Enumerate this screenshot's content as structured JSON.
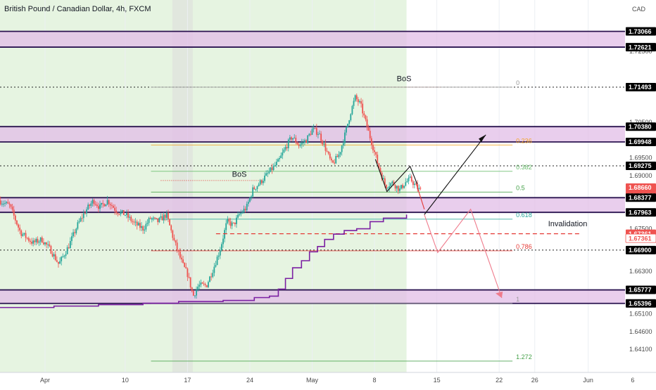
{
  "chart_data": {
    "type": "candlestick",
    "title": "British Pound / Canadian Dollar, 4h, FXCM",
    "currency": "CAD",
    "ylim": [
      1.6345,
      1.7395
    ],
    "x_axis": {
      "ticks": [
        {
          "label": "Apr",
          "day": 0
        },
        {
          "label": "10",
          "day": 9
        },
        {
          "label": "17",
          "day": 16
        },
        {
          "label": "24",
          "day": 23
        },
        {
          "label": "May",
          "day": 30
        },
        {
          "label": "8",
          "day": 37
        },
        {
          "label": "15",
          "day": 44
        },
        {
          "label": "22",
          "day": 51
        },
        {
          "label": "26",
          "day": 55
        },
        {
          "label": "Jun",
          "day": 61
        },
        {
          "label": "6",
          "day": 66
        }
      ]
    },
    "y_axis_ticks": [
      "1.72500",
      "1.70500",
      "1.69500",
      "1.69000",
      "1.67500",
      "1.66300",
      "1.65100",
      "1.64600",
      "1.64100"
    ],
    "price_tags": [
      {
        "label": "1.73066",
        "value": 1.73066,
        "style": "level"
      },
      {
        "label": "1.72621",
        "value": 1.72621,
        "style": "level"
      },
      {
        "label": "1.71493",
        "value": 1.71493,
        "style": "level"
      },
      {
        "label": "1.70380",
        "value": 1.7038,
        "style": "level"
      },
      {
        "label": "1.69948",
        "value": 1.69948,
        "style": "level"
      },
      {
        "label": "1.69275",
        "value": 1.69275,
        "style": "level"
      },
      {
        "label": "1.68660",
        "value": 1.6866,
        "style": "current"
      },
      {
        "label": "01:13:54",
        "value": 1.6844,
        "style": "countdown"
      },
      {
        "label": "1.68377",
        "value": 1.68377,
        "style": "level"
      },
      {
        "label": "1.67963",
        "value": 1.67963,
        "style": "level"
      },
      {
        "label": "1.67361",
        "value": 1.67361,
        "style": "red"
      },
      {
        "label": "1.67361",
        "value": 1.67231,
        "style": "red-outline"
      },
      {
        "label": "1.66900",
        "value": 1.669,
        "style": "level"
      },
      {
        "label": "1.65777",
        "value": 1.65777,
        "style": "level"
      },
      {
        "label": "1.65396",
        "value": 1.65396,
        "style": "level"
      }
    ],
    "zones": [
      {
        "name": "supply-zone-top",
        "y_top": 1.73066,
        "y_bottom": 1.72621
      },
      {
        "name": "supply-zone-mid",
        "y_top": 1.7038,
        "y_bottom": 1.69948
      },
      {
        "name": "demand-zone-mid",
        "y_top": 1.68377,
        "y_bottom": 1.67963
      },
      {
        "name": "demand-zone-low",
        "y_top": 1.65777,
        "y_bottom": 1.65396
      }
    ],
    "fibonacci": [
      {
        "label": "0",
        "value": 1.71493
      },
      {
        "label": "0.236",
        "value": 1.69862
      },
      {
        "label": "0.382",
        "value": 1.6912
      },
      {
        "label": "0.5",
        "value": 1.68534
      },
      {
        "label": "0.618",
        "value": 1.67772
      },
      {
        "label": "0.786",
        "value": 1.6688
      },
      {
        "label": "1",
        "value": 1.65396
      },
      {
        "label": "1.272",
        "value": 1.6377
      }
    ],
    "annotations": [
      {
        "text": "BoS",
        "x_day": 39.5,
        "y": 1.7166
      },
      {
        "text": "BoS",
        "x_day": 21.0,
        "y": 1.6897
      },
      {
        "text": "Invalidation",
        "x_day": 56.5,
        "y": 1.6757
      }
    ],
    "moving_average_color": "#7b1fa2",
    "colors": {
      "up": "#26a69a",
      "down": "#ef5350",
      "zone_fill": "#e1bee7",
      "zone_border": "#2b1450",
      "highlight_green": "#e6f4e1",
      "invalidation": "#e53935",
      "projection_red": "#ef7b8c",
      "projection_black": "#111111"
    }
  }
}
